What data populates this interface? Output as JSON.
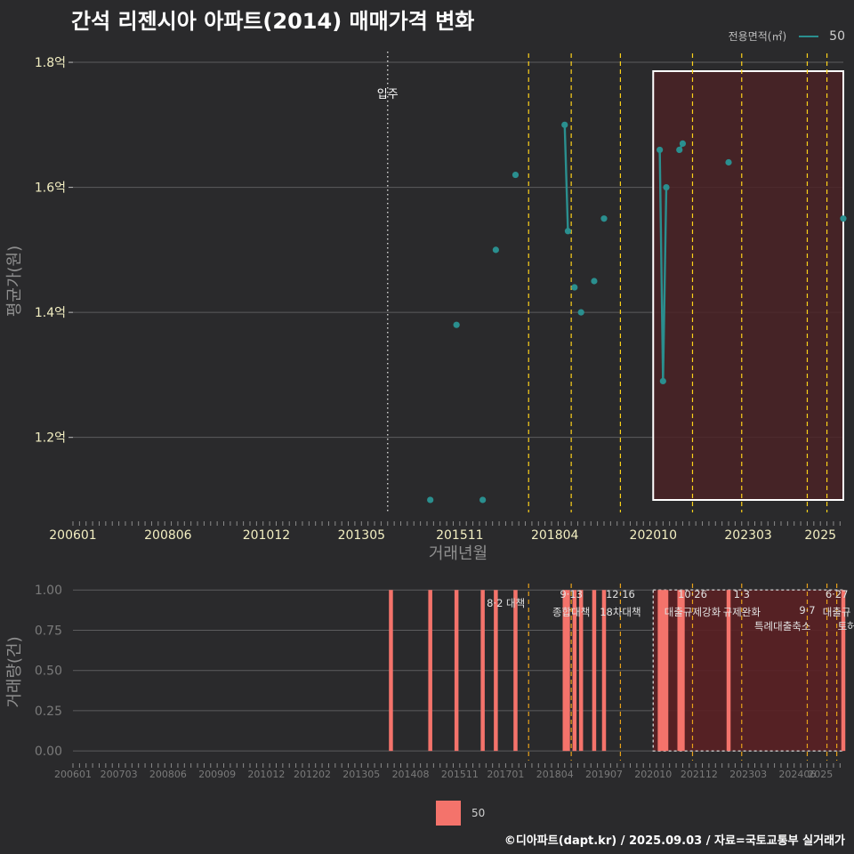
{
  "title": "간석 리젠시아 아파트(2014) 매매가격 변화",
  "footer": "©디아파트(dapt.kr) / 2025.09.03 / 자료=국토교통부 실거래가",
  "legend_top": {
    "title": "전용면적(㎡)",
    "series": "50"
  },
  "legend_bottom": {
    "series": "50"
  },
  "colors": {
    "line": "#2a8f8f",
    "bar": "#f4736b",
    "policy": "#ffd21a",
    "highlight": "#4a2226"
  },
  "chart_data": [
    {
      "type": "line",
      "ylabel": "평균가(원)",
      "xlabel": "거래년월",
      "x_tick_labels": [
        "200601",
        "200806",
        "201012",
        "201305",
        "201511",
        "201804",
        "202010",
        "202303",
        "2025"
      ],
      "y_ticks": [
        {
          "value": 1.2,
          "label": "1.2억"
        },
        {
          "value": 1.4,
          "label": "1.4억"
        },
        {
          "value": 1.6,
          "label": "1.6억"
        },
        {
          "value": 1.8,
          "label": "1.8억"
        }
      ],
      "ylim": [
        1.08,
        1.82
      ],
      "annotation": {
        "label": "입주",
        "x": "2014-01"
      },
      "policy_lines": [
        "2017-08",
        "2018-09",
        "2019-12",
        "2021-10",
        "2023-01",
        "2024-09",
        "2025-03"
      ],
      "highlight_range": [
        "2020-10",
        "2025-08"
      ],
      "series": [
        {
          "name": "50",
          "points": [
            {
              "x": "2015-02",
              "y": 1.1
            },
            {
              "x": "2015-10",
              "y": 1.38
            },
            {
              "x": "2016-06",
              "y": 1.1
            },
            {
              "x": "2016-10",
              "y": 1.5
            },
            {
              "x": "2017-04",
              "y": 1.62
            },
            {
              "x": "2018-07",
              "y": 1.7
            },
            {
              "x": "2018-08",
              "y": 1.53
            },
            {
              "x": "2018-10",
              "y": 1.44
            },
            {
              "x": "2018-12",
              "y": 1.4
            },
            {
              "x": "2019-04",
              "y": 1.45
            },
            {
              "x": "2019-07",
              "y": 1.55
            },
            {
              "x": "2020-12",
              "y": 1.66
            },
            {
              "x": "2021-01",
              "y": 1.29
            },
            {
              "x": "2021-02",
              "y": 1.6
            },
            {
              "x": "2021-06",
              "y": 1.66
            },
            {
              "x": "2021-07",
              "y": 1.67
            },
            {
              "x": "2022-09",
              "y": 1.64
            },
            {
              "x": "2025-08",
              "y": 1.55
            }
          ]
        }
      ]
    },
    {
      "type": "bar",
      "ylabel": "거래량(건)",
      "x_tick_labels": [
        "200601",
        "200703",
        "200806",
        "200909",
        "201012",
        "201202",
        "201305",
        "201408",
        "201511",
        "201701",
        "201804",
        "201907",
        "202010",
        "202112",
        "202303",
        "202406",
        "2025"
      ],
      "y_ticks": [
        {
          "value": 0.0,
          "label": "0.00"
        },
        {
          "value": 0.25,
          "label": "0.25"
        },
        {
          "value": 0.5,
          "label": "0.50"
        },
        {
          "value": 0.75,
          "label": "0.75"
        },
        {
          "value": 1.0,
          "label": "1.00"
        }
      ],
      "ylim": [
        -0.06,
        1.04
      ],
      "highlight_range": [
        "2020-10",
        "2025-08"
      ],
      "policies": [
        {
          "x": "2017-08",
          "date": "8·2",
          "name": "대책"
        },
        {
          "x": "2018-09",
          "date": "9·13",
          "name": "종합대책"
        },
        {
          "x": "2019-12",
          "date": "12·16",
          "name": "18차대책"
        },
        {
          "x": "2021-10",
          "date": "10·26",
          "name": "대출규제강화"
        },
        {
          "x": "2023-01",
          "date": "1·3",
          "name": "규제완화"
        },
        {
          "x": "2024-09",
          "date": "9·7",
          "name": "특례대출축소"
        },
        {
          "x": "2025-03",
          "date": "",
          "name": "토허제 해제"
        },
        {
          "x": "2025-06",
          "date": "6·27",
          "name": "대출규"
        }
      ],
      "series": [
        {
          "name": "50",
          "bars": [
            {
              "x": "2014-02",
              "y": 1
            },
            {
              "x": "2015-02",
              "y": 1
            },
            {
              "x": "2015-10",
              "y": 1
            },
            {
              "x": "2016-06",
              "y": 1
            },
            {
              "x": "2016-10",
              "y": 1
            },
            {
              "x": "2017-04",
              "y": 1
            },
            {
              "x": "2018-07",
              "y": 1
            },
            {
              "x": "2018-08",
              "y": 1
            },
            {
              "x": "2018-10",
              "y": 1
            },
            {
              "x": "2018-12",
              "y": 1
            },
            {
              "x": "2019-04",
              "y": 1
            },
            {
              "x": "2019-07",
              "y": 1
            },
            {
              "x": "2020-12",
              "y": 1
            },
            {
              "x": "2021-01",
              "y": 1
            },
            {
              "x": "2021-02",
              "y": 1
            },
            {
              "x": "2021-06",
              "y": 1
            },
            {
              "x": "2021-07",
              "y": 1
            },
            {
              "x": "2022-09",
              "y": 1
            },
            {
              "x": "2025-08",
              "y": 1
            }
          ]
        }
      ]
    }
  ]
}
